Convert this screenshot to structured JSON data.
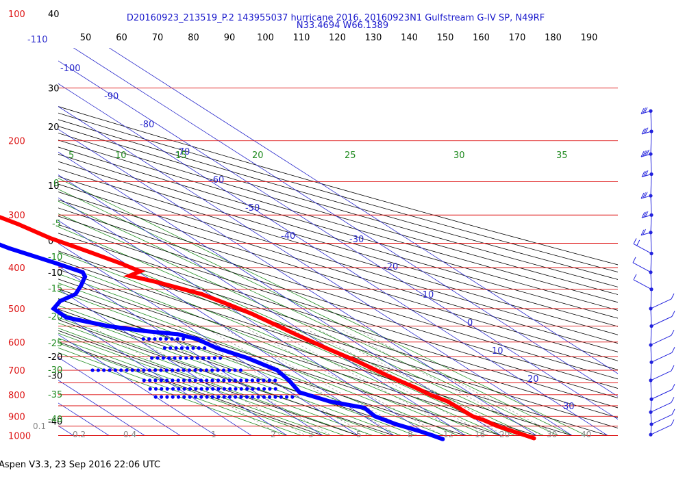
{
  "title_line1": "D20160923_213519_P.2 143955037 hurricane 2016, 20160923N1 Gulfstream G-IV SP, N49RF",
  "title_line2": "N33.4694 W66.1389",
  "footer": "Aspen V3.3, 23 Sep 2016  22:06 UTC",
  "colors": {
    "isobar": "#dd1111",
    "isotherm": "#2a2acc",
    "dry_adiabat": "#000000",
    "moist_adiabat": "#1e8a1e",
    "mixing_ratio": "#888888",
    "temperature": "#ff0000",
    "dewpoint": "#0000ff",
    "wind": "#2222dd"
  },
  "chart_data": {
    "type": "scatter",
    "subtype": "skew-T log-P sounding",
    "y_axis": {
      "scale": "log",
      "pressure_hpa_labels": [
        "100",
        "200",
        "300",
        "400",
        "500",
        "600",
        "700",
        "800",
        "900",
        "1000"
      ],
      "pressure_hpa_values": [
        100,
        200,
        300,
        400,
        500,
        600,
        700,
        800,
        900,
        1000
      ],
      "range": [
        100,
        1040
      ]
    },
    "x_axis": {
      "top_labels": [
        "50",
        "60",
        "70",
        "80",
        "90",
        "100",
        "110",
        "120",
        "130",
        "140",
        "150",
        "160",
        "170",
        "180",
        "190"
      ]
    },
    "left_temp_labels": [
      {
        "p": 100,
        "label": "40"
      },
      {
        "p": 150,
        "label": "30"
      },
      {
        "p": 185,
        "label": "20"
      },
      {
        "p": 255,
        "label": "10"
      },
      {
        "p": 345,
        "label": "0"
      },
      {
        "p": 410,
        "label": "-10"
      },
      {
        "p": 650,
        "label": "-20"
      },
      {
        "p": 720,
        "label": "-30"
      },
      {
        "p": 925,
        "label": "-40"
      }
    ],
    "isotherm_labels": [
      "-110",
      "-100",
      "-90",
      "-80",
      "-70",
      "-60",
      "-50",
      "-40",
      "-30",
      "-20",
      "-10",
      "0",
      "10",
      "20",
      "30"
    ],
    "moist_adiabat_labels": [
      "5",
      "10",
      "15",
      "20",
      "25",
      "30",
      "35",
      "0",
      "-5",
      "-10",
      "-15",
      "-20",
      "-25",
      "-30",
      "-35",
      "-40"
    ],
    "mixing_ratio_labels": [
      "0.1",
      "0.2",
      "0.4",
      "1",
      "2",
      "3",
      "5",
      "8",
      "12",
      "16",
      "20",
      "30",
      "40"
    ],
    "series": [
      {
        "name": "Temperature",
        "points": [
          {
            "p": 160,
            "t": -55.8
          },
          {
            "p": 185,
            "t": -51.7
          },
          {
            "p": 207,
            "t": -47.5
          },
          {
            "p": 230,
            "t": -41.4
          },
          {
            "p": 262,
            "t": -33.4
          },
          {
            "p": 300,
            "t": -25.6
          },
          {
            "p": 315,
            "t": -22.9
          },
          {
            "p": 340,
            "t": -20.0
          },
          {
            "p": 365,
            "t": -15.4
          },
          {
            "p": 390,
            "t": -11.3
          },
          {
            "p": 408,
            "t": -9.3
          },
          {
            "p": 418,
            "t": -14.2
          },
          {
            "p": 433,
            "t": -9.2
          },
          {
            "p": 462,
            "t": -2.0
          },
          {
            "p": 490,
            "t": 1.1
          },
          {
            "p": 515,
            "t": 3.5
          },
          {
            "p": 545,
            "t": 5.2
          },
          {
            "p": 580,
            "t": 7.0
          },
          {
            "p": 620,
            "t": 9.3
          },
          {
            "p": 668,
            "t": 12.3
          },
          {
            "p": 720,
            "t": 14.4
          },
          {
            "p": 770,
            "t": 17.0
          },
          {
            "p": 802,
            "t": 18.1
          },
          {
            "p": 830,
            "t": 20.0
          },
          {
            "p": 862,
            "t": 20.3
          },
          {
            "p": 900,
            "t": 20.5
          },
          {
            "p": 920,
            "t": 22.0
          },
          {
            "p": 950,
            "t": 23.2
          },
          {
            "p": 985,
            "t": 25.9
          },
          {
            "p": 1005,
            "t": 27.4
          },
          {
            "p": 1015,
            "t": 28.1
          }
        ]
      },
      {
        "name": "Dewpoint",
        "points": [
          {
            "p": 215,
            "t": -59.7
          },
          {
            "p": 240,
            "t": -54.3
          },
          {
            "p": 285,
            "t": -49.6
          },
          {
            "p": 320,
            "t": -42.4
          },
          {
            "p": 360,
            "t": -35.9
          },
          {
            "p": 390,
            "t": -29.4
          },
          {
            "p": 410,
            "t": -25.8
          },
          {
            "p": 420,
            "t": -27.1
          },
          {
            "p": 440,
            "t": -31.9
          },
          {
            "p": 462,
            "t": -37.4
          },
          {
            "p": 480,
            "t": -44.8
          },
          {
            "p": 500,
            "t": -49.9
          },
          {
            "p": 525,
            "t": -50.2
          },
          {
            "p": 550,
            "t": -42.3
          },
          {
            "p": 565,
            "t": -34.4
          },
          {
            "p": 575,
            "t": -26.3
          },
          {
            "p": 590,
            "t": -23.0
          },
          {
            "p": 620,
            "t": -21.4
          },
          {
            "p": 655,
            "t": -17.2
          },
          {
            "p": 700,
            "t": -14.2
          },
          {
            "p": 740,
            "t": -15.3
          },
          {
            "p": 790,
            "t": -17.6
          },
          {
            "p": 830,
            "t": -13.1
          },
          {
            "p": 860,
            "t": -6.2
          },
          {
            "p": 900,
            "t": -6.9
          },
          {
            "p": 940,
            "t": -4.5
          },
          {
            "p": 975,
            "t": -1.0
          },
          {
            "p": 1000,
            "t": 0.9
          },
          {
            "p": 1020,
            "t": 2.1
          }
        ],
        "scatter_rows": [
          {
            "p": 590,
            "t1": -38,
            "t2": -26
          },
          {
            "p": 620,
            "t1": -36,
            "t2": -24
          },
          {
            "p": 655,
            "t1": -44,
            "t2": -24
          },
          {
            "p": 700,
            "t1": -66,
            "t2": -24
          },
          {
            "p": 740,
            "t1": -56,
            "t2": -18
          },
          {
            "p": 775,
            "t1": -58,
            "t2": -22
          },
          {
            "p": 810,
            "t1": -60,
            "t2": -20
          }
        ]
      }
    ],
    "wind_barbs": [
      {
        "p": 170,
        "speed_kt": 30
      },
      {
        "p": 190,
        "speed_kt": 30
      },
      {
        "p": 215,
        "speed_kt": 35
      },
      {
        "p": 240,
        "speed_kt": 30
      },
      {
        "p": 270,
        "speed_kt": 25
      },
      {
        "p": 300,
        "speed_kt": 25
      },
      {
        "p": 330,
        "speed_kt": 20
      },
      {
        "p": 370,
        "speed_kt": 20
      },
      {
        "p": 410,
        "speed_kt": 10
      },
      {
        "p": 450,
        "speed_kt": 10
      },
      {
        "p": 500,
        "speed_kt": 10
      },
      {
        "p": 550,
        "speed_kt": 10
      },
      {
        "p": 610,
        "speed_kt": 10
      },
      {
        "p": 670,
        "speed_kt": 10
      },
      {
        "p": 740,
        "speed_kt": 10
      },
      {
        "p": 820,
        "speed_kt": 10
      },
      {
        "p": 880,
        "speed_kt": 10
      },
      {
        "p": 940,
        "speed_kt": 10
      },
      {
        "p": 995,
        "speed_kt": 10
      }
    ],
    "grid": true
  }
}
